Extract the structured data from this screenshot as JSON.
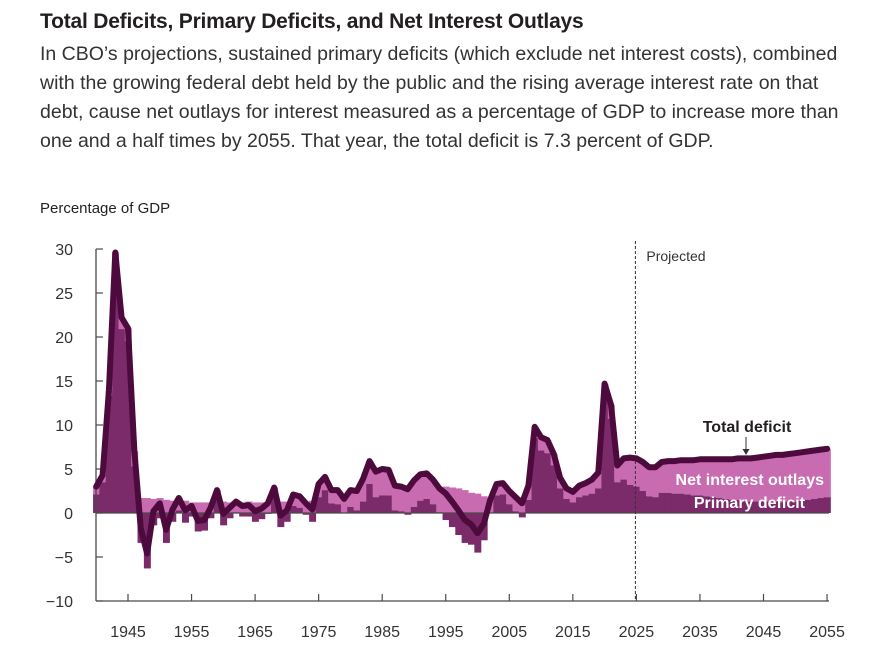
{
  "header": {
    "title": "Total Deficits, Primary Deficits, and Net Interest Outlays",
    "subtitle": "In CBO’s projections, sustained primary deficits (which exclude net interest costs), combined with the growing federal debt held by the public and the rising average interest rate on that debt, cause net outlays for interest measured as a percentage of GDP to increase more than one and a half times by 2055. That year, the total deficit is 7.3 percent of GDP."
  },
  "chart_data": {
    "type": "area",
    "title": "Total Deficits, Primary Deficits, and Net Interest Outlays",
    "ylabel": "Percentage of GDP",
    "xlabel": "",
    "ylim": [
      -10,
      30
    ],
    "xlim": [
      1940,
      2055
    ],
    "yticks": [
      30,
      25,
      20,
      15,
      10,
      5,
      0,
      -5,
      -10
    ],
    "ytick_labels": [
      "30",
      "25",
      "20",
      "15",
      "10",
      "5",
      "0",
      "−5",
      "−10"
    ],
    "xticks": [
      1945,
      1955,
      1965,
      1975,
      1985,
      1995,
      2005,
      2015,
      2025,
      2035,
      2045,
      2055
    ],
    "xtick_labels": [
      "1945",
      "1955",
      "1965",
      "1975",
      "1985",
      "1995",
      "2005",
      "2015",
      "2025",
      "2035",
      "2045",
      "2055"
    ],
    "grid": false,
    "projection_start": 2025,
    "projection_label": "Projected",
    "colors": {
      "total": "#4d0a3c",
      "net_interest": "#c96bb0",
      "primary": "#7b2a6a",
      "axis": "#4a4a4a"
    },
    "annotations": [
      {
        "text": "Total deficit",
        "series": "total",
        "arrow": true
      },
      {
        "text": "Net interest outlays",
        "series": "net_interest"
      },
      {
        "text": "Primary deficit",
        "series": "primary"
      }
    ],
    "x": [
      1940,
      1941,
      1942,
      1943,
      1944,
      1945,
      1946,
      1947,
      1948,
      1949,
      1950,
      1951,
      1952,
      1953,
      1954,
      1955,
      1956,
      1957,
      1958,
      1959,
      1960,
      1961,
      1962,
      1963,
      1964,
      1965,
      1966,
      1967,
      1968,
      1969,
      1970,
      1971,
      1972,
      1973,
      1974,
      1975,
      1976,
      1977,
      1978,
      1979,
      1980,
      1981,
      1982,
      1983,
      1984,
      1985,
      1986,
      1987,
      1988,
      1989,
      1990,
      1991,
      1992,
      1993,
      1994,
      1995,
      1996,
      1997,
      1998,
      1999,
      2000,
      2001,
      2002,
      2003,
      2004,
      2005,
      2006,
      2007,
      2008,
      2009,
      2010,
      2011,
      2012,
      2013,
      2014,
      2015,
      2016,
      2017,
      2018,
      2019,
      2020,
      2021,
      2022,
      2023,
      2024,
      2025,
      2026,
      2027,
      2028,
      2029,
      2030,
      2031,
      2032,
      2033,
      2034,
      2035,
      2036,
      2037,
      2038,
      2039,
      2040,
      2041,
      2042,
      2043,
      2044,
      2045,
      2046,
      2047,
      2048,
      2049,
      2050,
      2051,
      2052,
      2053,
      2054,
      2055
    ],
    "series": [
      {
        "name": "Total deficit",
        "values": [
          3.0,
          4.3,
          13.9,
          29.6,
          22.2,
          21.0,
          7.0,
          -1.7,
          -4.6,
          0.2,
          1.1,
          -1.9,
          0.4,
          1.7,
          0.3,
          0.8,
          -0.9,
          -0.8,
          0.6,
          2.6,
          -0.1,
          0.6,
          1.3,
          0.8,
          0.9,
          0.2,
          0.5,
          1.1,
          2.9,
          -0.3,
          0.3,
          2.1,
          1.9,
          1.1,
          0.4,
          3.3,
          4.1,
          2.6,
          2.6,
          1.6,
          2.6,
          2.5,
          3.9,
          5.9,
          4.7,
          5.0,
          4.9,
          3.1,
          3.0,
          2.7,
          3.7,
          4.4,
          4.5,
          3.8,
          2.8,
          2.2,
          1.3,
          0.3,
          -0.8,
          -1.3,
          -2.3,
          -1.2,
          1.5,
          3.3,
          3.4,
          2.5,
          1.8,
          1.1,
          3.1,
          9.8,
          8.6,
          8.3,
          6.7,
          4.0,
          2.8,
          2.4,
          3.1,
          3.4,
          3.8,
          4.6,
          14.7,
          12.3,
          5.4,
          6.2,
          6.3,
          6.2,
          5.8,
          5.2,
          5.2,
          5.8,
          5.9,
          5.9,
          6.0,
          6.0,
          6.0,
          6.1,
          6.1,
          6.1,
          6.1,
          6.1,
          6.1,
          6.2,
          6.2,
          6.2,
          6.3,
          6.4,
          6.5,
          6.6,
          6.6,
          6.7,
          6.8,
          6.9,
          7.0,
          7.1,
          7.2,
          7.3
        ]
      },
      {
        "name": "Net interest outlays",
        "values": [
          0.9,
          0.8,
          0.6,
          1.2,
          1.3,
          1.5,
          1.7,
          1.7,
          1.7,
          1.6,
          1.7,
          1.5,
          1.4,
          1.4,
          1.4,
          1.2,
          1.2,
          1.2,
          1.2,
          1.2,
          1.3,
          1.2,
          1.2,
          1.2,
          1.3,
          1.2,
          1.2,
          1.2,
          1.2,
          1.3,
          1.3,
          1.3,
          1.3,
          1.3,
          1.4,
          1.5,
          1.5,
          1.5,
          1.6,
          1.6,
          1.9,
          2.2,
          2.6,
          2.6,
          2.9,
          3.0,
          2.9,
          2.8,
          2.8,
          2.9,
          3.0,
          3.0,
          2.9,
          2.8,
          2.7,
          3.0,
          2.9,
          2.8,
          2.6,
          2.3,
          2.2,
          1.9,
          1.5,
          1.3,
          1.3,
          1.5,
          1.6,
          1.6,
          1.6,
          1.3,
          1.5,
          1.5,
          1.3,
          1.2,
          1.2,
          1.2,
          1.3,
          1.4,
          1.6,
          1.8,
          1.6,
          1.6,
          1.9,
          2.4,
          3.1,
          3.2,
          3.3,
          3.3,
          3.4,
          3.5,
          3.6,
          3.7,
          3.8,
          3.9,
          4.0,
          4.1,
          4.2,
          4.3,
          4.4,
          4.5,
          4.6,
          4.7,
          4.8,
          4.9,
          5.0,
          5.1,
          5.2,
          5.3,
          5.4,
          5.4,
          5.5,
          5.5,
          5.5,
          5.5,
          5.5,
          5.5
        ]
      },
      {
        "name": "Primary deficit",
        "values": [
          2.1,
          3.5,
          13.3,
          28.4,
          20.9,
          19.5,
          5.3,
          -3.4,
          -6.3,
          -1.4,
          -0.6,
          -3.4,
          -1.0,
          0.3,
          -1.1,
          -0.4,
          -2.1,
          -2.0,
          -0.6,
          1.4,
          -1.4,
          -0.6,
          0.1,
          -0.4,
          -0.4,
          -1.0,
          -0.7,
          -0.1,
          1.7,
          -1.6,
          -1.0,
          0.8,
          0.6,
          -0.2,
          -1.0,
          1.8,
          2.6,
          1.1,
          1.0,
          0.0,
          0.7,
          0.3,
          1.3,
          3.3,
          1.8,
          2.0,
          2.0,
          0.3,
          0.2,
          -0.2,
          0.7,
          1.4,
          1.6,
          1.0,
          0.1,
          -0.8,
          -1.6,
          -2.5,
          -3.4,
          -3.6,
          -4.5,
          -3.1,
          0.0,
          2.0,
          2.1,
          1.0,
          0.2,
          -0.5,
          1.5,
          8.5,
          7.1,
          6.8,
          5.4,
          2.8,
          1.6,
          1.2,
          1.8,
          2.0,
          2.2,
          2.8,
          13.1,
          10.7,
          3.5,
          3.8,
          3.2,
          3.0,
          2.5,
          1.9,
          1.8,
          2.3,
          2.3,
          2.2,
          2.2,
          2.1,
          2.0,
          2.0,
          1.9,
          1.8,
          1.7,
          1.6,
          1.5,
          1.5,
          1.4,
          1.3,
          1.3,
          1.3,
          1.3,
          1.3,
          1.2,
          1.3,
          1.3,
          1.4,
          1.5,
          1.6,
          1.7,
          1.8
        ]
      }
    ]
  }
}
